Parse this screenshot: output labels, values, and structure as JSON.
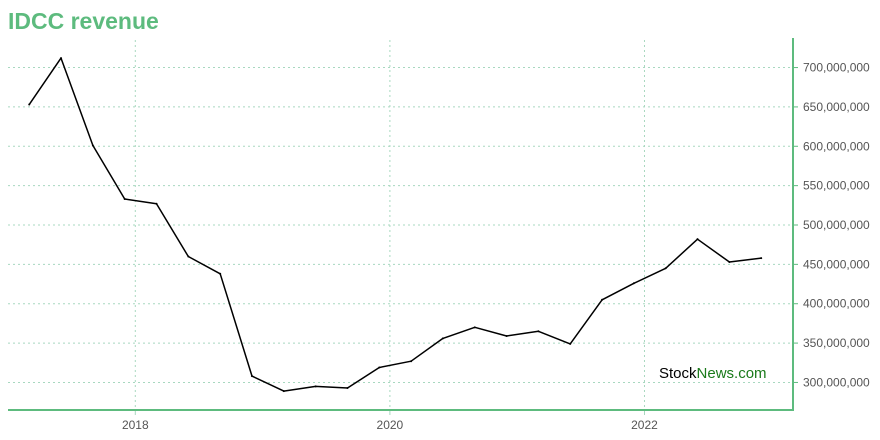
{
  "title": "IDCC revenue",
  "watermark": {
    "part1": "Stock",
    "part2": "News.com"
  },
  "colors": {
    "title": "#5dbb7e",
    "axis": "#5dbb7e",
    "grid": "#a8d8c0",
    "line": "#000000",
    "watermark_accent": "#1a7a1a"
  },
  "chart_data": {
    "type": "line",
    "title": "IDCC revenue",
    "xlabel": "",
    "ylabel": "",
    "xlim": [
      "2017-01",
      "2023-03"
    ],
    "ylim": [
      265000000,
      735000000
    ],
    "x_ticks": [
      {
        "x": "2018-01",
        "label": "2018"
      },
      {
        "x": "2020-01",
        "label": "2020"
      },
      {
        "x": "2022-01",
        "label": "2022"
      }
    ],
    "y_ticks": [
      {
        "value": 300000000,
        "label": "300,000,000"
      },
      {
        "value": 350000000,
        "label": "350,000,000"
      },
      {
        "value": 400000000,
        "label": "400,000,000"
      },
      {
        "value": 450000000,
        "label": "450,000,000"
      },
      {
        "value": 500000000,
        "label": "500,000,000"
      },
      {
        "value": 550000000,
        "label": "550,000,000"
      },
      {
        "value": 600000000,
        "label": "600,000,000"
      },
      {
        "value": 650000000,
        "label": "650,000,000"
      },
      {
        "value": 700000000,
        "label": "700,000,000"
      }
    ],
    "grid": true,
    "series": [
      {
        "x": [
          "2017-03",
          "2017-06",
          "2017-09",
          "2017-12",
          "2018-03",
          "2018-06",
          "2018-09",
          "2018-12",
          "2019-03",
          "2019-06",
          "2019-09",
          "2019-12",
          "2020-03",
          "2020-06",
          "2020-09",
          "2020-12",
          "2021-03",
          "2021-06",
          "2021-09",
          "2021-12",
          "2022-03",
          "2022-06",
          "2022-09",
          "2022-12"
        ],
        "values": [
          653000000,
          712000000,
          601000000,
          533000000,
          527000000,
          460000000,
          438000000,
          308000000,
          289000000,
          295000000,
          293000000,
          319000000,
          327000000,
          356000000,
          370000000,
          359000000,
          365000000,
          349000000,
          405000000,
          426000000,
          445000000,
          482000000,
          453000000,
          458000000
        ]
      }
    ]
  }
}
